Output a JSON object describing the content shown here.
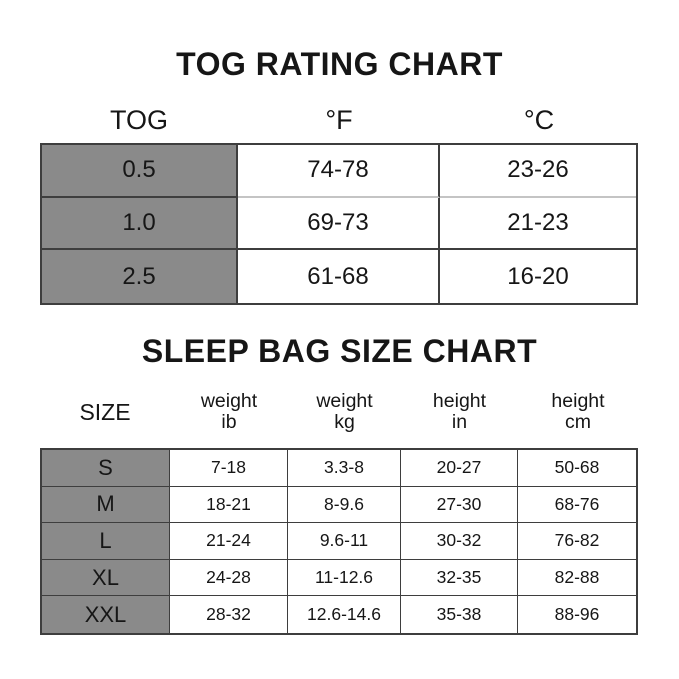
{
  "colors": {
    "background": "#ffffff",
    "label_column_bg": "#8a8a8a",
    "table_border": "#3e3e3e",
    "text": "#161616"
  },
  "chart_data": [
    {
      "type": "table",
      "title": "TOG RATING CHART",
      "columns": [
        "TOG",
        "°F",
        "°C"
      ],
      "rows": [
        [
          "0.5",
          "74-78",
          "23-26"
        ],
        [
          "1.0",
          "69-73",
          "21-23"
        ],
        [
          "2.5",
          "61-68",
          "16-20"
        ]
      ],
      "layout": "first column shaded gray; header labels above table"
    },
    {
      "type": "table",
      "title": "SLEEP BAG SIZE CHART",
      "columns": [
        [
          "SIZE",
          ""
        ],
        [
          "weight",
          "ib"
        ],
        [
          "weight",
          "kg"
        ],
        [
          "height",
          "in"
        ],
        [
          "height",
          "cm"
        ]
      ],
      "rows": [
        [
          "S",
          "7-18",
          "3.3-8",
          "20-27",
          "50-68"
        ],
        [
          "M",
          "18-21",
          "8-9.6",
          "27-30",
          "68-76"
        ],
        [
          "L",
          "21-24",
          "9.6-11",
          "30-32",
          "76-82"
        ],
        [
          "XL",
          "24-28",
          "11-12.6",
          "32-35",
          "82-88"
        ],
        [
          "XXL",
          "28-32",
          "12.6-14.6",
          "35-38",
          "88-96"
        ]
      ],
      "layout": "first column shaded gray; two-line header labels above table"
    }
  ]
}
